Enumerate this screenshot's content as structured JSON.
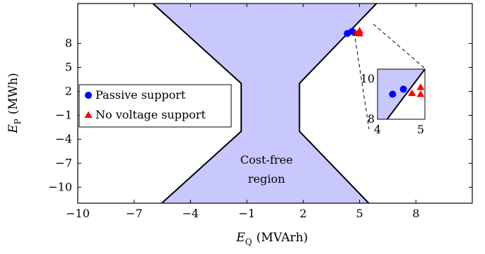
{
  "chart_data": {
    "type": "scatter",
    "xlabel_main": "E",
    "xlabel_sub": "Q",
    "xlabel_unit": "(MVArh)",
    "ylabel_main": "E",
    "ylabel_sub": "P",
    "ylabel_unit": "(MWh)",
    "xlim": [
      -10,
      11
    ],
    "ylim": [
      -12,
      13
    ],
    "xticks": [
      -10,
      -7,
      -4,
      -1,
      2,
      5,
      8
    ],
    "yticks": [
      -10,
      -7,
      -4,
      -1,
      2,
      5,
      8
    ],
    "xtick_labels": [
      "−10",
      "−7",
      "−4",
      "−1",
      "2",
      "5",
      "8"
    ],
    "ytick_labels": [
      "−10",
      "−7",
      "−4",
      "−1",
      "2",
      "5",
      "8"
    ],
    "grid": false,
    "legend_position": "center-left",
    "region": {
      "label_line1": "Cost-free",
      "label_line2": "region",
      "color": "#c8c8ff",
      "boundary": [
        [
          -6,
          13
        ],
        [
          -1.3,
          3
        ],
        [
          -1.3,
          -3
        ],
        [
          -6,
          -13
        ],
        [
          5.9,
          -13
        ],
        [
          1.8,
          -3
        ],
        [
          1.8,
          3
        ],
        [
          5.9,
          13
        ]
      ]
    },
    "series": [
      {
        "name": "Passive support",
        "marker": "circle",
        "color": "#0000ff",
        "points": [
          [
            4.35,
            9.25
          ],
          [
            4.6,
            9.5
          ]
        ]
      },
      {
        "name": "No voltage support",
        "marker": "triangle",
        "color": "#ff0000",
        "points": [
          [
            4.8,
            9.3
          ],
          [
            5.0,
            9.25
          ],
          [
            5.0,
            9.6
          ]
        ]
      }
    ],
    "inset": {
      "xlim": [
        4,
        5.1
      ],
      "ylim": [
        8,
        10.5
      ],
      "xtick_labels": [
        "4",
        "5"
      ],
      "ytick_labels": [
        "8",
        "10"
      ]
    }
  }
}
